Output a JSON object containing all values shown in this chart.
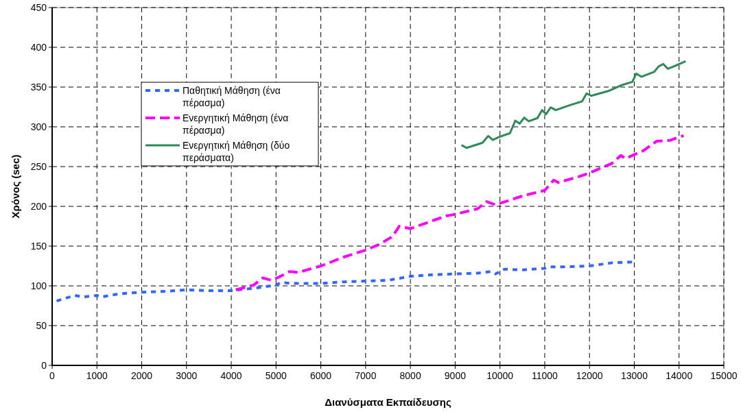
{
  "chart_data": {
    "type": "line",
    "xlabel": "Διανύσματα Εκπαίδευσης",
    "ylabel": "Χρόνος (sec)",
    "xlim": [
      0,
      15000
    ],
    "xticks": [
      0,
      1000,
      2000,
      3000,
      4000,
      5000,
      6000,
      7000,
      8000,
      9000,
      10000,
      11000,
      12000,
      13000,
      14000,
      15000
    ],
    "ylim": [
      0,
      450
    ],
    "yticks": [
      0,
      50,
      100,
      150,
      200,
      250,
      300,
      350,
      400,
      450
    ],
    "grid": true,
    "legend": "top left",
    "marker": "none",
    "series": [
      {
        "name": "Παθητική Μάθηση (ένα πέρασμα)",
        "color": "#3366ff",
        "line_style": "dotted",
        "x": [
          100,
          500,
          700,
          1000,
          1100,
          1500,
          2000,
          2500,
          3000,
          3500,
          4000,
          4500,
          5000,
          5100,
          5500,
          6000,
          6500,
          7000,
          7500,
          8000,
          8500,
          9000,
          9500,
          9800,
          9900,
          10100,
          10500,
          11000,
          11100,
          11500,
          12000,
          12500,
          13000
        ],
        "values": [
          81,
          88,
          86,
          88,
          86,
          90,
          92,
          93,
          95,
          94,
          94,
          97,
          101,
          104,
          103,
          103,
          105,
          106,
          107,
          112,
          114,
          115,
          116,
          118,
          115,
          121,
          120,
          122,
          124,
          124,
          125,
          129,
          130
        ]
      },
      {
        "name": "Ενεργητική Μάθηση (ένα πέρασμα)",
        "color": "#ff00ff",
        "line_style": "dashed",
        "x": [
          4100,
          4500,
          4700,
          4900,
          5100,
          5300,
          5500,
          6000,
          6500,
          7000,
          7300,
          7600,
          7750,
          8000,
          8400,
          8800,
          9000,
          9500,
          9700,
          9900,
          10500,
          11000,
          11200,
          11300,
          11800,
          12000,
          12500,
          12700,
          12800,
          13200,
          13500,
          13800,
          14100
        ],
        "values": [
          95,
          101,
          110,
          107,
          112,
          118,
          117,
          125,
          136,
          145,
          152,
          162,
          175,
          172,
          180,
          188,
          190,
          197,
          206,
          202,
          213,
          220,
          233,
          230,
          238,
          242,
          254,
          264,
          260,
          270,
          282,
          283,
          289
        ]
      },
      {
        "name": "Ενεργητική Μάθηση (δύο περάσματα)",
        "color": "#2e8b57",
        "line_style": "solid",
        "x": [
          9142,
          9254,
          9611,
          9739,
          9842,
          9969,
          10224,
          10342,
          10440,
          10541,
          10643,
          10837,
          10939,
          11031,
          11133,
          11246,
          11552,
          11833,
          11935,
          12037,
          12420,
          12727,
          12957,
          13043,
          13161,
          13441,
          13544,
          13646,
          13748,
          13952,
          14146
        ],
        "values": [
          277,
          273.5,
          280,
          288.5,
          283.6,
          287,
          292,
          307.7,
          304,
          311.5,
          307,
          311,
          321,
          316,
          324.4,
          321,
          327,
          332,
          342,
          339,
          345,
          352.6,
          356.6,
          367,
          363,
          369,
          376,
          379,
          373,
          377.6,
          382.5
        ]
      }
    ]
  }
}
